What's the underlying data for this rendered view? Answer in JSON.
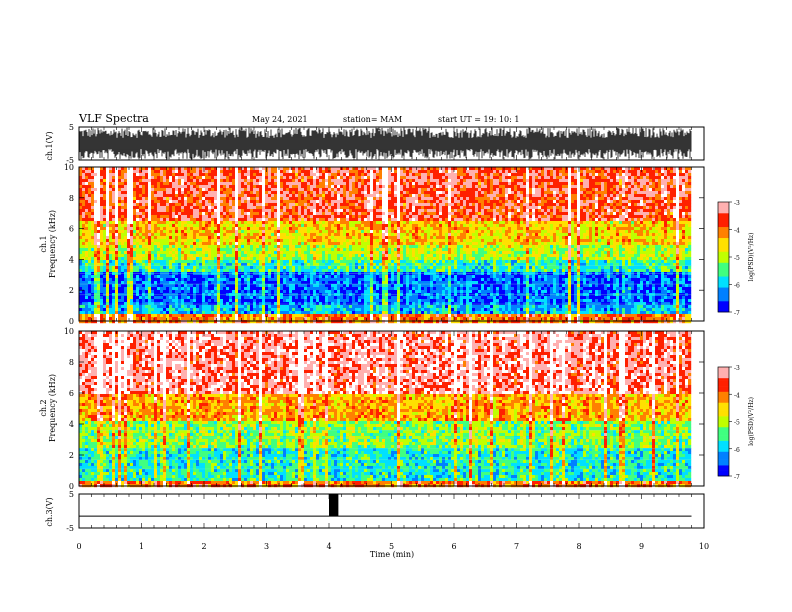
{
  "header": {
    "title": "VLF Spectra",
    "date": "May 24, 2021",
    "station": "station= MAM",
    "start": "start  UT =   19: 10: 1"
  },
  "colors": {
    "spectrogram_scale": [
      "#00007f",
      "#0000ff",
      "#0080ff",
      "#00e0ff",
      "#40ff80",
      "#c0ff00",
      "#ffe000",
      "#ff8000",
      "#ff2000",
      "#ffb0b0",
      "#ffffff"
    ],
    "trace": "#000000"
  },
  "chart_data": [
    {
      "type": "line",
      "panel": "ch1-waveform",
      "ylabel": "ch.1(V)",
      "ylim": [
        -5,
        5
      ],
      "yticks": [
        "5",
        "-5"
      ],
      "description_values": {
        "min": -4.8,
        "max": 4.8
      }
    },
    {
      "type": "heatmap",
      "panel": "ch1-spectrogram",
      "ylabel": "ch.1\nFrequency (kHz)",
      "ylim": [
        0,
        10
      ],
      "yticks": [
        "0",
        "2",
        "4",
        "6",
        "8",
        "10"
      ],
      "colorbar": {
        "label": "log(PSD)(V²/Hz)",
        "ticks": [
          "-3",
          "-4",
          "-5",
          "-6",
          "-7"
        ],
        "range": [
          -7,
          -3
        ]
      },
      "bands_khz": [
        [
          0,
          0.4,
          -4.0
        ],
        [
          0.4,
          1.0,
          -6.0
        ],
        [
          1.0,
          3.2,
          -6.4
        ],
        [
          3.2,
          4.0,
          -5.6
        ],
        [
          4.0,
          5.0,
          -5.0
        ],
        [
          5.0,
          6.5,
          -4.5
        ],
        [
          6.5,
          10,
          -3.6
        ]
      ]
    },
    {
      "type": "heatmap",
      "panel": "ch2-spectrogram",
      "ylabel": "ch.2\nFrequency (kHz)",
      "ylim": [
        0,
        10
      ],
      "yticks": [
        "0",
        "2",
        "4",
        "6",
        "8",
        "10"
      ],
      "colorbar": {
        "label": "log(PSD)(V²/Hz)",
        "ticks": [
          "-3",
          "-4",
          "-5",
          "-6",
          "-7"
        ],
        "range": [
          -7,
          -3
        ]
      },
      "bands_khz": [
        [
          0,
          0.3,
          -4.0
        ],
        [
          0.3,
          2.5,
          -5.7
        ],
        [
          2.5,
          4.2,
          -5.2
        ],
        [
          4.2,
          6.0,
          -4.3
        ],
        [
          6.0,
          10,
          -3.3
        ]
      ]
    },
    {
      "type": "line",
      "panel": "ch3-waveform",
      "ylabel": "ch.3(V)",
      "ylim": [
        -5,
        5
      ],
      "yticks": [
        "5",
        "-5"
      ],
      "baseline": -1.5,
      "pulse": {
        "x_start_min": 4.0,
        "x_end_min": 4.15,
        "low": -1.5,
        "high": 5
      }
    }
  ],
  "xaxis": {
    "label": "Time (min)",
    "xlim": [
      0,
      10
    ],
    "ticks": [
      "0",
      "1",
      "2",
      "3",
      "4",
      "5",
      "6",
      "7",
      "8",
      "9",
      "10"
    ],
    "data_end_min": 9.8
  }
}
